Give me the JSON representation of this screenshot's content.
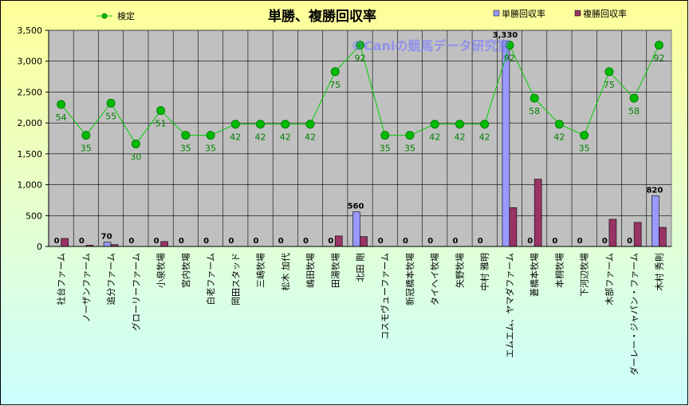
{
  "chart_data": {
    "type": "bar",
    "title": "単勝、複勝回収率",
    "watermark": "©Caniの競馬データ研究室",
    "categories": [
      "社台ファーム",
      "ノーザンファーム",
      "追分ファーム",
      "グローリーファーム",
      "小泉牧場",
      "宮内牧場",
      "白老ファーム",
      "岡田スタッド",
      "三嶋牧場",
      "松木 加代",
      "嶋田牧場",
      "田湯牧場",
      "北田 剛",
      "コスモヴューファーム",
      "新冠橋本牧場",
      "タイヘイ牧場",
      "矢野牧場",
      "中村 雅明",
      "エムエム、ヤマダファーム",
      "蒼橋本牧場",
      "本桐牧場",
      "下河辺牧場",
      "木部ファーム",
      "ダーレー・ジャパン・ファーム",
      "木村 秀則"
    ],
    "series": [
      {
        "name": "単勝回収率",
        "type": "bar",
        "color": "#9999ff",
        "values": [
          0,
          0,
          70,
          0,
          0,
          0,
          0,
          0,
          0,
          0,
          0,
          0,
          560,
          0,
          0,
          0,
          0,
          0,
          3330,
          0,
          0,
          0,
          0,
          0,
          820
        ]
      },
      {
        "name": "複勝回収率",
        "type": "bar",
        "color": "#993366",
        "values": [
          130,
          20,
          30,
          0,
          80,
          0,
          0,
          0,
          0,
          0,
          0,
          170,
          160,
          0,
          0,
          0,
          0,
          0,
          630,
          1090,
          0,
          0,
          440,
          390,
          310
        ]
      },
      {
        "name": "検定",
        "type": "line",
        "color": "#00cc00",
        "values": [
          2300,
          1800,
          2320,
          1660,
          2200,
          1800,
          1800,
          1980,
          1980,
          1980,
          1980,
          2830,
          3260,
          1800,
          1800,
          1980,
          1980,
          1980,
          3260,
          2400,
          1980,
          1800,
          2830,
          2400,
          3260
        ],
        "labels": [
          54,
          35,
          55,
          30,
          51,
          35,
          35,
          42,
          42,
          42,
          42,
          75,
          92,
          35,
          35,
          42,
          42,
          42,
          92,
          58,
          42,
          35,
          75,
          58,
          92
        ]
      }
    ],
    "bar_labels": [
      "0",
      "0",
      "70",
      "0",
      "0",
      "0",
      "0",
      "0",
      "0",
      "0",
      "0",
      "0",
      "560",
      "0",
      "0",
      "0",
      "0",
      "0",
      "3,330",
      "0",
      "0",
      "0",
      "0",
      "0",
      "820"
    ],
    "yticks": [
      "0",
      "500",
      "1,000",
      "1,500",
      "2,000",
      "2,500",
      "3,000",
      "3,500"
    ],
    "ylim": [
      0,
      3500
    ],
    "grid": true,
    "legend": "top",
    "colors": {
      "plot_bg": "#c0c0c0",
      "page_top": "#ffff99",
      "page_bottom": "#ccffff",
      "line": "#00cc00",
      "marker": "#00bb00"
    }
  }
}
